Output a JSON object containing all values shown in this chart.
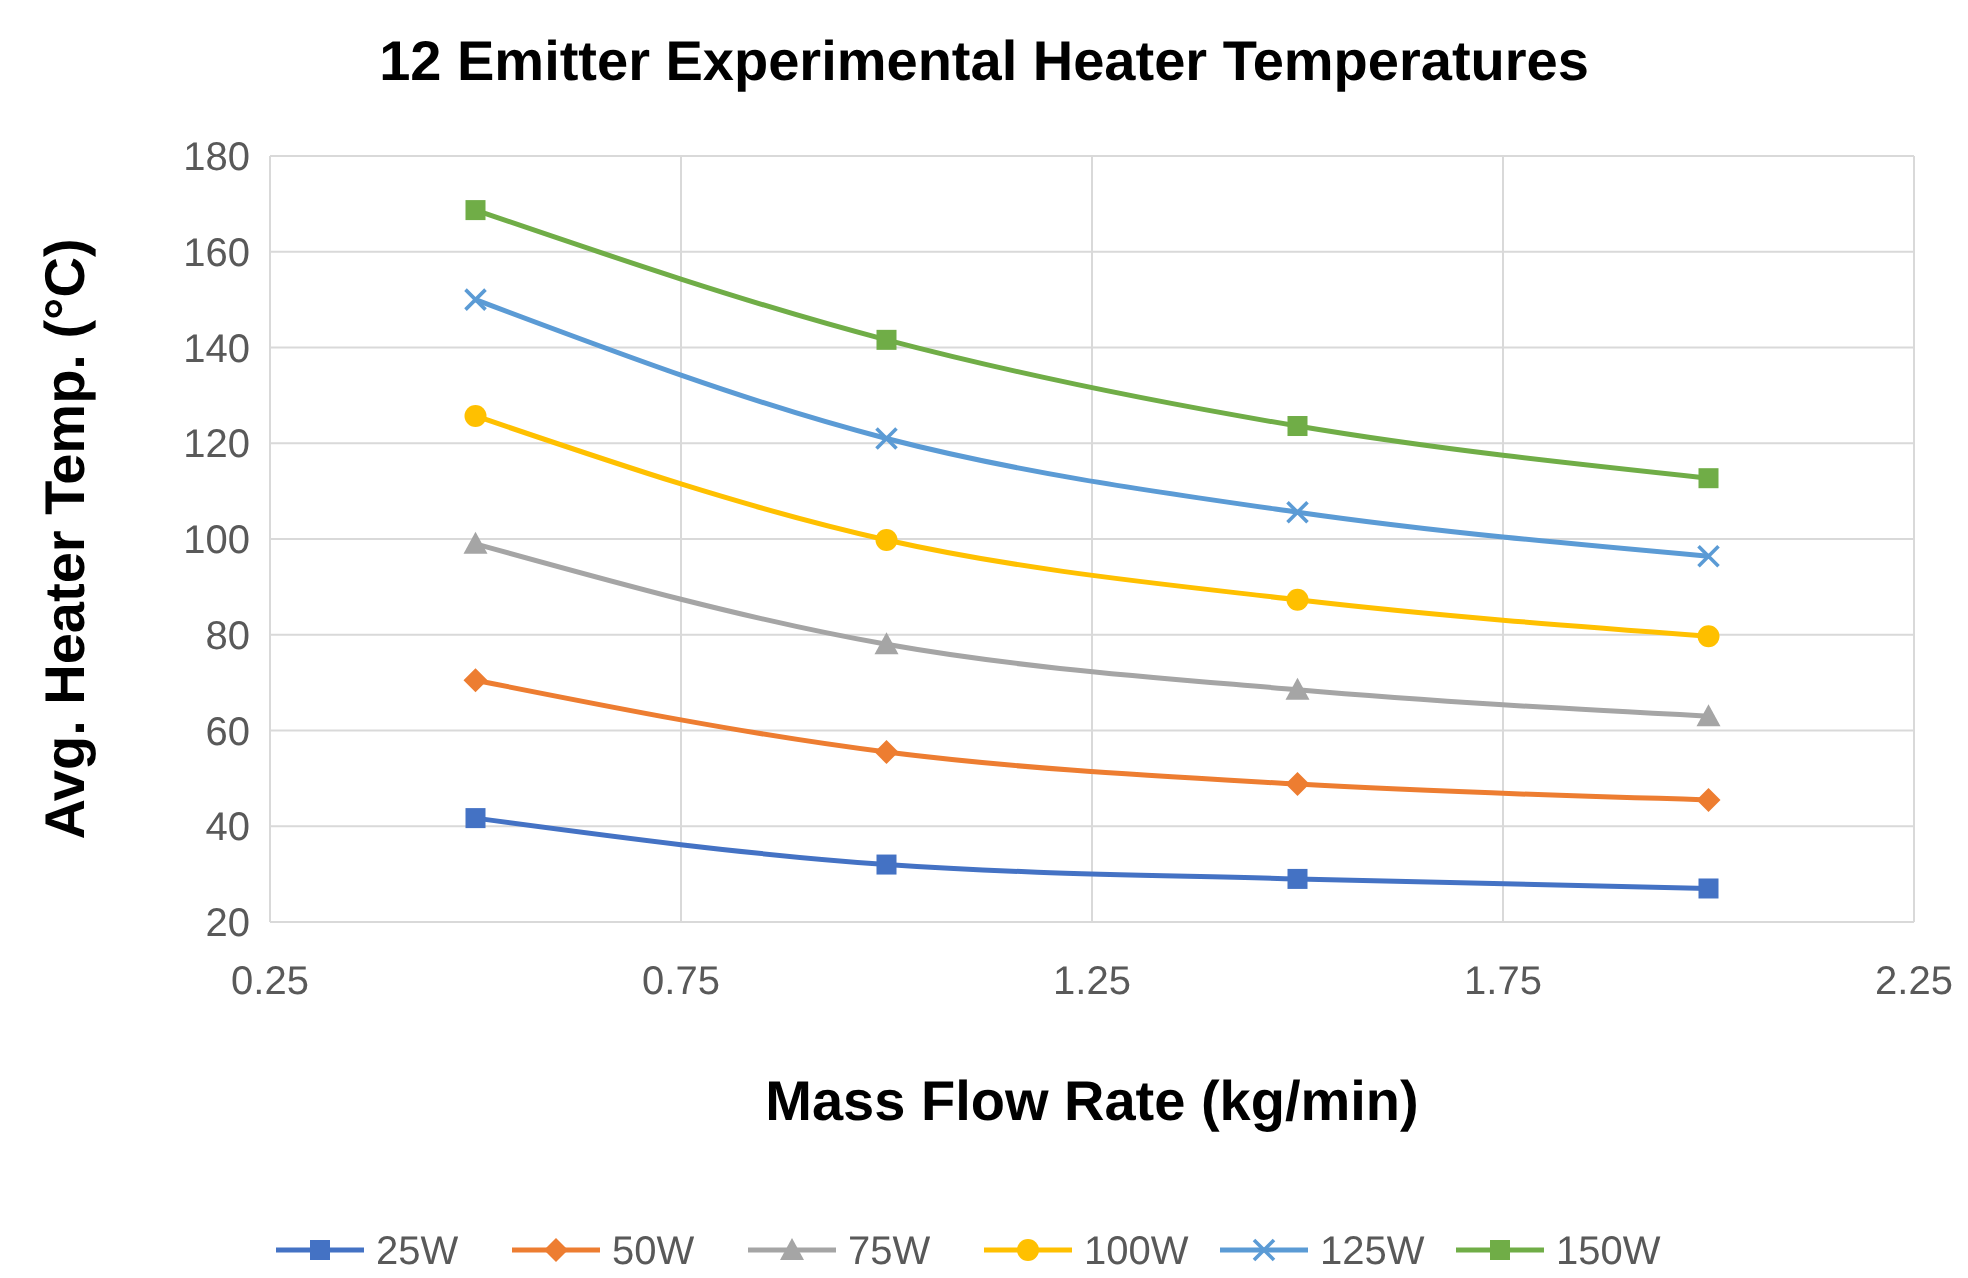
{
  "chart_data": {
    "type": "line",
    "title": "12 Emitter Experimental Heater Temperatures",
    "xlabel": "Mass Flow Rate (kg/min)",
    "ylabel": "Avg. Heater Temp. (°C)",
    "x": [
      0.5,
      1.0,
      1.5,
      2.0
    ],
    "xlim": [
      0.25,
      2.25
    ],
    "xticks": [
      0.25,
      0.75,
      1.25,
      1.75,
      2.25
    ],
    "ylim": [
      20,
      180
    ],
    "yticks": [
      20,
      40,
      60,
      80,
      100,
      120,
      140,
      160,
      180
    ],
    "grid": true,
    "legend": "bottom",
    "line_style": "solid",
    "series": [
      {
        "name": "25W",
        "color": "#4472c4",
        "marker": "square",
        "values": [
          41.7,
          32,
          29,
          27
        ]
      },
      {
        "name": "50W",
        "color": "#ed7d31",
        "marker": "diamond",
        "values": [
          70.5,
          55.5,
          48.8,
          45.5
        ]
      },
      {
        "name": "75W",
        "color": "#a5a5a5",
        "marker": "triangle",
        "values": [
          99,
          78,
          68.5,
          63
        ]
      },
      {
        "name": "100W",
        "color": "#ffc000",
        "marker": "circle",
        "values": [
          125.7,
          99.8,
          87.3,
          79.7
        ]
      },
      {
        "name": "125W",
        "color": "#5b9bd5",
        "marker": "cross",
        "values": [
          150,
          121,
          105.6,
          96.4
        ]
      },
      {
        "name": "150W",
        "color": "#70ad47",
        "marker": "square",
        "values": [
          168.7,
          141.6,
          123.6,
          112.7
        ]
      }
    ]
  }
}
